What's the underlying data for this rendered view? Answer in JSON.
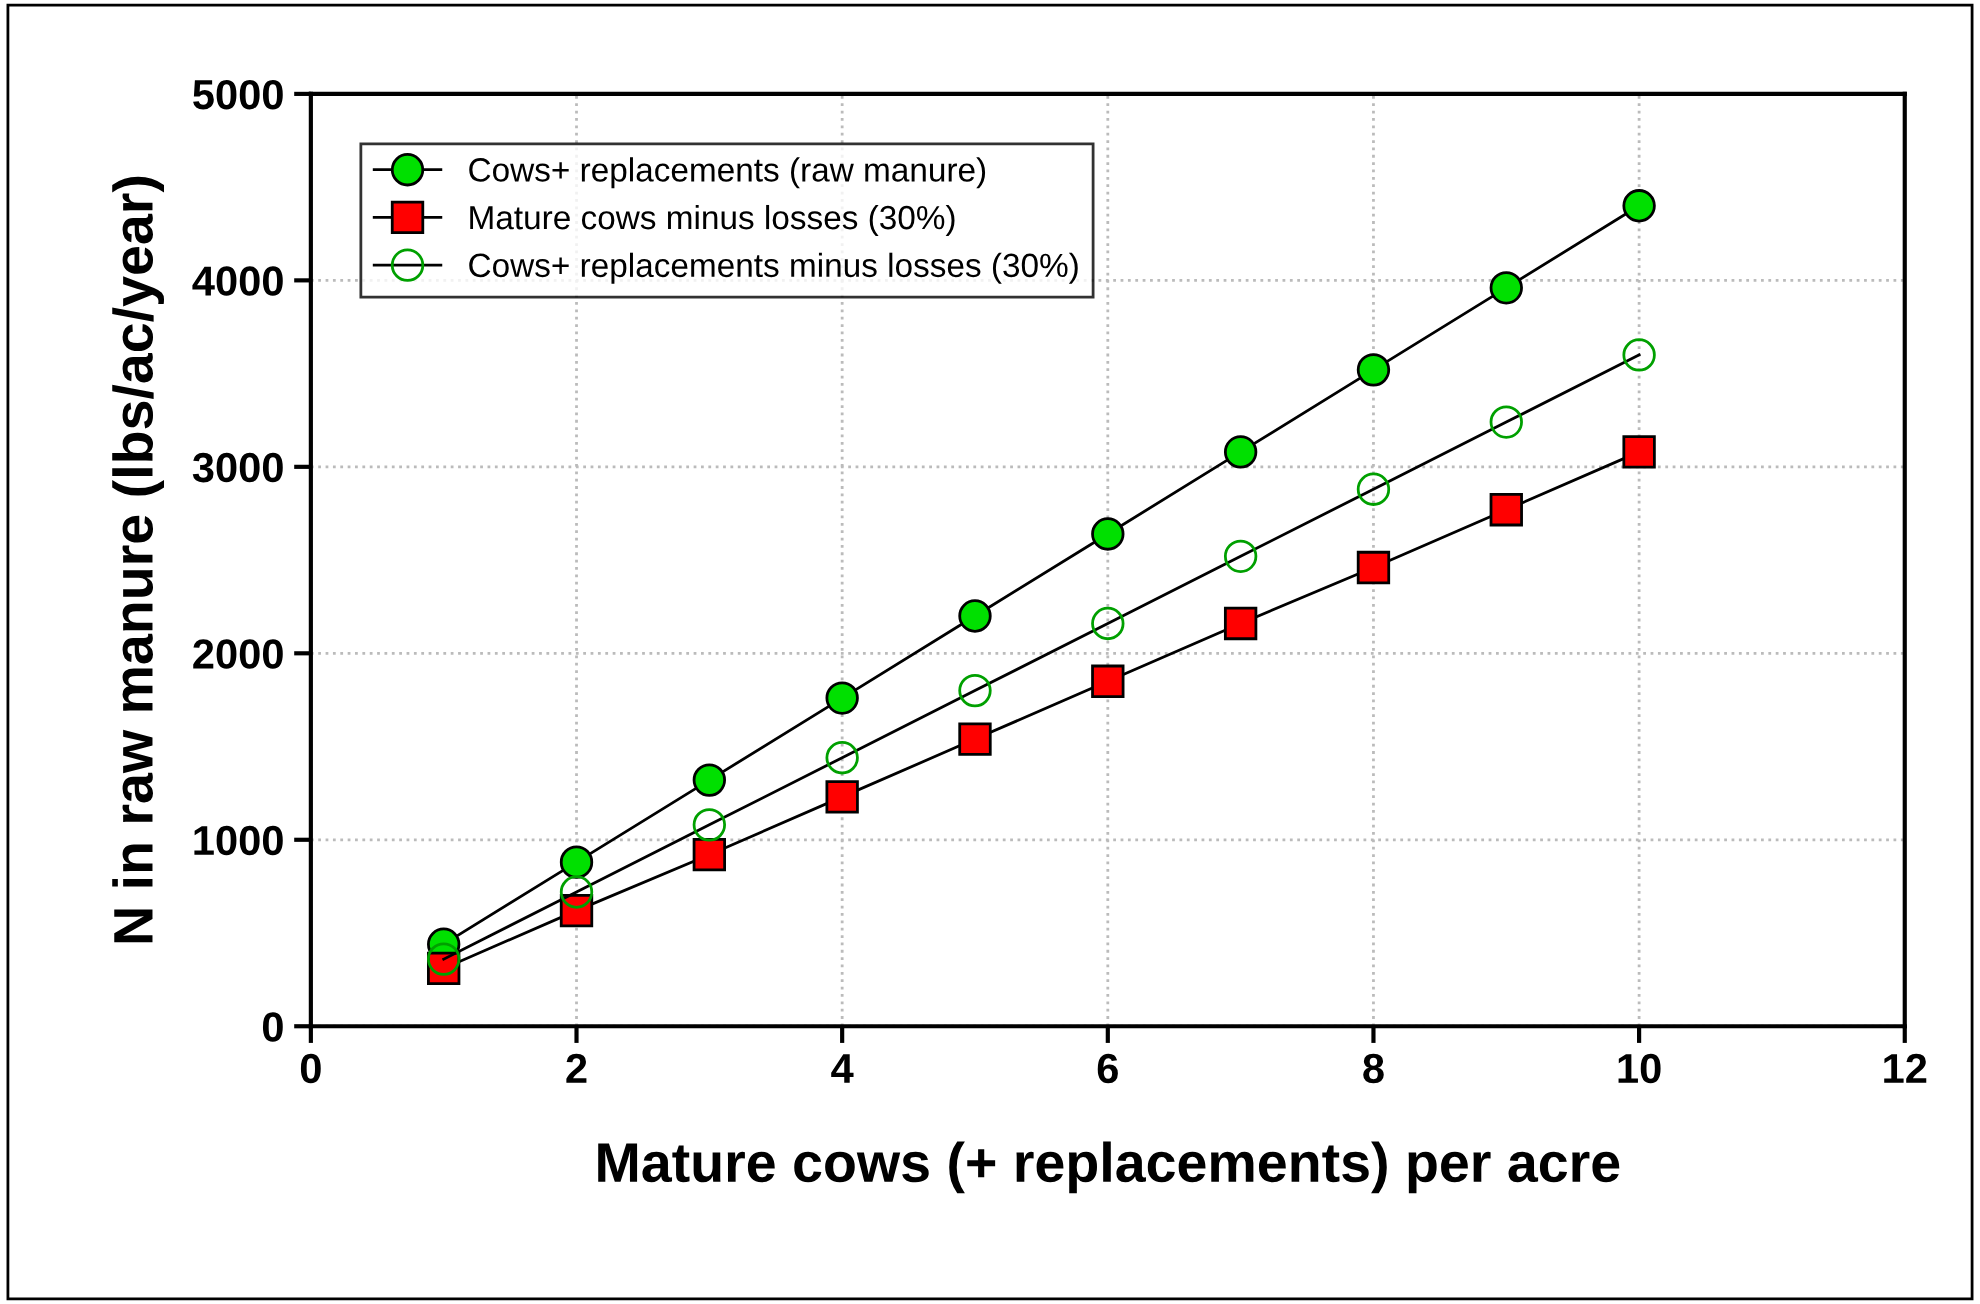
{
  "chart_data": {
    "type": "line",
    "xlabel": "Mature cows (+ replacements) per acre",
    "ylabel": "N in raw manure (lbs/ac/year)",
    "x": [
      1,
      2,
      3,
      4,
      5,
      6,
      7,
      8,
      9,
      10
    ],
    "series": [
      {
        "name": "Cows+ replacements (raw manure)",
        "color": "#00e000",
        "marker": "circle",
        "values": [
          440,
          880,
          1320,
          1760,
          2200,
          2640,
          3080,
          3520,
          3960,
          4400
        ]
      },
      {
        "name": "Mature cows minus losses (30%)",
        "color": "#ff0000",
        "marker": "square",
        "values": [
          310,
          620,
          920,
          1230,
          1540,
          1850,
          2160,
          2460,
          2770,
          3080
        ]
      },
      {
        "name": "Cows+ replacements minus losses (30%)",
        "color": "#00a000",
        "marker": "open circle",
        "values": [
          360,
          720,
          1080,
          1440,
          1800,
          2160,
          2520,
          2880,
          3240,
          3600
        ]
      }
    ],
    "xlim": [
      0,
      12
    ],
    "xticks": [
      0,
      2,
      4,
      6,
      8,
      10,
      12
    ],
    "ylim": [
      0,
      5000
    ],
    "yticks": [
      0,
      1000,
      2000,
      3000,
      4000,
      5000
    ],
    "grid": true,
    "legend": "top left",
    "line_style": "solid"
  }
}
